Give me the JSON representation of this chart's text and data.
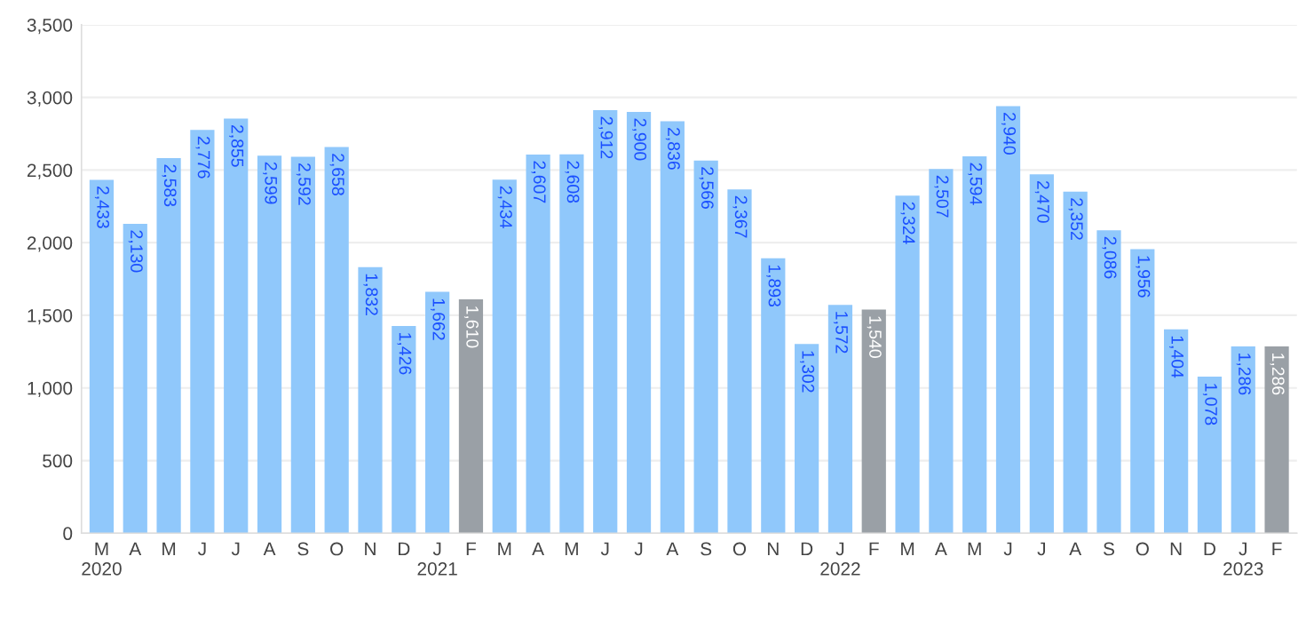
{
  "chart_data": {
    "type": "bar",
    "categories": [
      "M\n2020",
      "A",
      "M",
      "J",
      "J",
      "A",
      "S",
      "O",
      "N",
      "D",
      "J\n2021",
      "F",
      "M",
      "A",
      "M",
      "J",
      "J",
      "A",
      "S",
      "O",
      "N",
      "D",
      "J\n2022",
      "F",
      "M",
      "A",
      "M",
      "J",
      "J",
      "A",
      "S",
      "O",
      "N",
      "D",
      "J\n2023",
      "F"
    ],
    "values": [
      2433,
      2130,
      2583,
      2776,
      2855,
      2599,
      2592,
      2658,
      1832,
      1426,
      1662,
      1610,
      2434,
      2607,
      2608,
      2912,
      2900,
      2836,
      2566,
      2367,
      1893,
      1302,
      1572,
      1540,
      2324,
      2507,
      2594,
      2940,
      2470,
      2352,
      2086,
      1956,
      1404,
      1078,
      1286,
      1286
    ],
    "value_labels": [
      "2,433",
      "2,130",
      "2,583",
      "2,776",
      "2,855",
      "2,599",
      "2,592",
      "2,658",
      "1,832",
      "1,426",
      "1,662",
      "1,610",
      "2,434",
      "2,607",
      "2,608",
      "2,912",
      "2,900",
      "2,836",
      "2,566",
      "2,367",
      "1,893",
      "1,302",
      "1,572",
      "1,540",
      "2,324",
      "2,507",
      "2,594",
      "2,940",
      "2,470",
      "2,352",
      "2,086",
      "1,956",
      "1,404",
      "1,078",
      "1,286",
      "1,286"
    ],
    "colors": [
      "#90c8fb",
      "#90c8fb",
      "#90c8fb",
      "#90c8fb",
      "#90c8fb",
      "#90c8fb",
      "#90c8fb",
      "#90c8fb",
      "#90c8fb",
      "#90c8fb",
      "#90c8fb",
      "#9aa0a6",
      "#90c8fb",
      "#90c8fb",
      "#90c8fb",
      "#90c8fb",
      "#90c8fb",
      "#90c8fb",
      "#90c8fb",
      "#90c8fb",
      "#90c8fb",
      "#90c8fb",
      "#90c8fb",
      "#9aa0a6",
      "#90c8fb",
      "#90c8fb",
      "#90c8fb",
      "#90c8fb",
      "#90c8fb",
      "#90c8fb",
      "#90c8fb",
      "#90c8fb",
      "#90c8fb",
      "#90c8fb",
      "#90c8fb",
      "#9aa0a6"
    ],
    "ylim": [
      0,
      3500
    ],
    "yticks": [
      0,
      500,
      {
        "value": 1000,
        "label": "1,000"
      },
      {
        "value": 1500,
        "label": "1,500"
      },
      {
        "value": 2000,
        "label": "2,000"
      },
      {
        "value": 2500,
        "label": "2,500"
      },
      {
        "value": 3000,
        "label": "3,000"
      },
      {
        "value": 3500,
        "label": "3,500"
      }
    ],
    "grid": "y"
  }
}
